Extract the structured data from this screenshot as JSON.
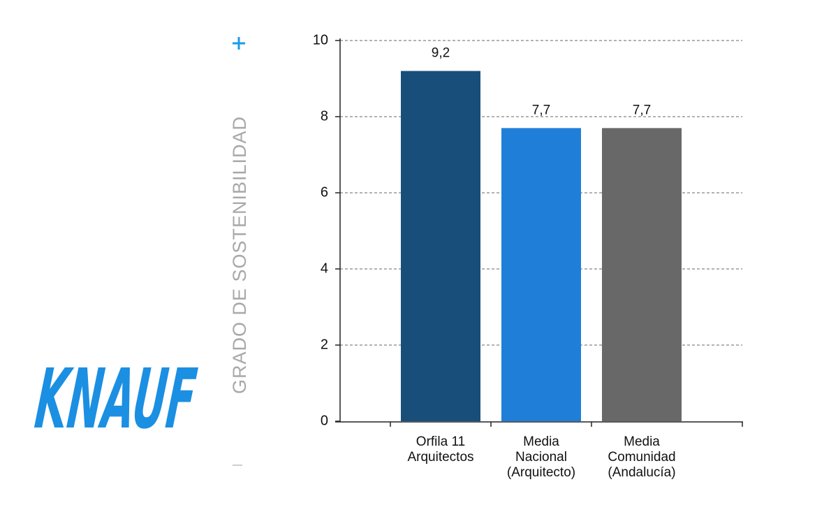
{
  "logo": "KNAUF",
  "chart_data": {
    "type": "bar",
    "y_label": "GRADO DE SOSTENIBILIDAD",
    "categories": [
      [
        "Orfila 11",
        "Arquitectos"
      ],
      [
        "Media",
        "Nacional",
        "(Arquitecto)"
      ],
      [
        "Media",
        "Comunidad",
        "(Andalucía)"
      ]
    ],
    "values": [
      9.2,
      7.7,
      7.7
    ],
    "value_labels": [
      "9,2",
      "7,7",
      "7,7"
    ],
    "colors": [
      "#174f7a",
      "#1f7fd8",
      "#686868"
    ],
    "ylim": [
      0,
      10
    ],
    "yticks": [
      0,
      2,
      4,
      6,
      8,
      10
    ],
    "grid": true
  }
}
